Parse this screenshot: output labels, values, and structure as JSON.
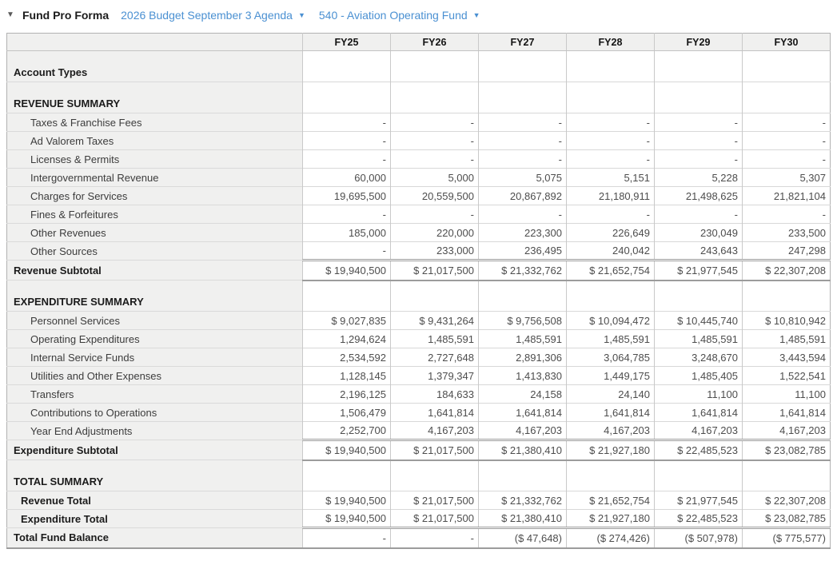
{
  "header": {
    "collapse_icon": "▼",
    "title": "Fund Pro Forma",
    "budget_selector": "2026 Budget September 3 Agenda",
    "fund_selector": "540 - Aviation Operating Fund",
    "caret_icon": "▼",
    "link_color": "#4a90d2"
  },
  "table": {
    "columns": [
      "FY25",
      "FY26",
      "FY27",
      "FY28",
      "FY29",
      "FY30"
    ],
    "rows": [
      {
        "type": "section",
        "label": "Account Types",
        "values": [
          "",
          "",
          "",
          "",
          "",
          ""
        ]
      },
      {
        "type": "section",
        "label": "REVENUE SUMMARY",
        "values": [
          "",
          "",
          "",
          "",
          "",
          ""
        ]
      },
      {
        "type": "detail",
        "label": "Taxes & Franchise Fees",
        "values": [
          "-",
          "-",
          "-",
          "-",
          "-",
          "-"
        ]
      },
      {
        "type": "detail",
        "label": "Ad Valorem Taxes",
        "values": [
          "-",
          "-",
          "-",
          "-",
          "-",
          "-"
        ]
      },
      {
        "type": "detail",
        "label": "Licenses & Permits",
        "values": [
          "-",
          "-",
          "-",
          "-",
          "-",
          "-"
        ]
      },
      {
        "type": "detail",
        "label": "Intergovernmental Revenue",
        "values": [
          "60,000",
          "5,000",
          "5,075",
          "5,151",
          "5,228",
          "5,307"
        ]
      },
      {
        "type": "detail",
        "label": "Charges for Services",
        "values": [
          "19,695,500",
          "20,559,500",
          "20,867,892",
          "21,180,911",
          "21,498,625",
          "21,821,104"
        ]
      },
      {
        "type": "detail",
        "label": "Fines & Forfeitures",
        "values": [
          "-",
          "-",
          "-",
          "-",
          "-",
          "-"
        ]
      },
      {
        "type": "detail",
        "label": "Other Revenues",
        "values": [
          "185,000",
          "220,000",
          "223,300",
          "226,649",
          "230,049",
          "233,500"
        ]
      },
      {
        "type": "detail",
        "label": "Other Sources",
        "values": [
          "-",
          "233,000",
          "236,495",
          "240,042",
          "243,643",
          "247,298"
        ]
      },
      {
        "type": "subtotal",
        "label": "Revenue Subtotal",
        "values": [
          "$ 19,940,500",
          "$ 21,017,500",
          "$ 21,332,762",
          "$ 21,652,754",
          "$ 21,977,545",
          "$ 22,307,208"
        ]
      },
      {
        "type": "section",
        "label": "EXPENDITURE SUMMARY",
        "values": [
          "",
          "",
          "",
          "",
          "",
          ""
        ]
      },
      {
        "type": "detail",
        "label": "Personnel Services",
        "values": [
          "$ 9,027,835",
          "$ 9,431,264",
          "$ 9,756,508",
          "$ 10,094,472",
          "$ 10,445,740",
          "$ 10,810,942"
        ]
      },
      {
        "type": "detail",
        "label": "Operating Expenditures",
        "values": [
          "1,294,624",
          "1,485,591",
          "1,485,591",
          "1,485,591",
          "1,485,591",
          "1,485,591"
        ]
      },
      {
        "type": "detail",
        "label": "Internal Service Funds",
        "values": [
          "2,534,592",
          "2,727,648",
          "2,891,306",
          "3,064,785",
          "3,248,670",
          "3,443,594"
        ]
      },
      {
        "type": "detail",
        "label": "Utilities and Other Expenses",
        "values": [
          "1,128,145",
          "1,379,347",
          "1,413,830",
          "1,449,175",
          "1,485,405",
          "1,522,541"
        ]
      },
      {
        "type": "detail",
        "label": "Transfers",
        "values": [
          "2,196,125",
          "184,633",
          "24,158",
          "24,140",
          "11,100",
          "11,100"
        ]
      },
      {
        "type": "detail",
        "label": "Contributions to Operations",
        "values": [
          "1,506,479",
          "1,641,814",
          "1,641,814",
          "1,641,814",
          "1,641,814",
          "1,641,814"
        ]
      },
      {
        "type": "detail",
        "label": "Year End Adjustments",
        "values": [
          "2,252,700",
          "4,167,203",
          "4,167,203",
          "4,167,203",
          "4,167,203",
          "4,167,203"
        ]
      },
      {
        "type": "subtotal",
        "label": "Expenditure Subtotal",
        "values": [
          "$ 19,940,500",
          "$ 21,017,500",
          "$ 21,380,410",
          "$ 21,927,180",
          "$ 22,485,523",
          "$ 23,082,785"
        ]
      },
      {
        "type": "section",
        "label": "TOTAL SUMMARY",
        "values": [
          "",
          "",
          "",
          "",
          "",
          ""
        ]
      },
      {
        "type": "total",
        "label": "Revenue Total",
        "values": [
          "$ 19,940,500",
          "$ 21,017,500",
          "$ 21,332,762",
          "$ 21,652,754",
          "$ 21,977,545",
          "$ 22,307,208"
        ]
      },
      {
        "type": "total-dbl",
        "label": "Expenditure Total",
        "values": [
          "$ 19,940,500",
          "$ 21,017,500",
          "$ 21,380,410",
          "$ 21,927,180",
          "$ 22,485,523",
          "$ 23,082,785"
        ]
      },
      {
        "type": "grand",
        "label": "Total Fund Balance",
        "values": [
          "-",
          "-",
          "($ 47,648)",
          "($ 274,426)",
          "($ 507,978)",
          "($ 775,577)"
        ]
      }
    ]
  }
}
